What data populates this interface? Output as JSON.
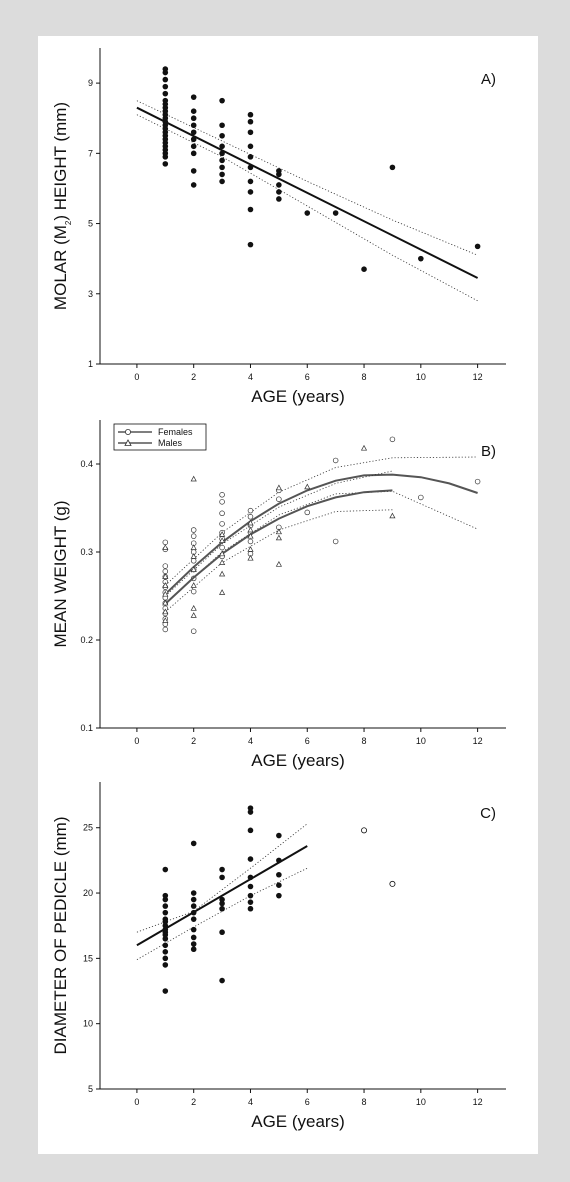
{
  "chart_data": [
    {
      "type": "scatter",
      "label": "A)",
      "xlabel": "AGE (years)",
      "ylabel": "MOLAR (M",
      "ylabel_sub": "2",
      "ylabel_tail": ") HEIGHT (mm)",
      "xlim": [
        -1.3,
        13
      ],
      "ylim": [
        1,
        10
      ],
      "xticks": [
        0,
        2,
        4,
        6,
        8,
        10,
        12
      ],
      "yticks": [
        1,
        3,
        5,
        7,
        9
      ],
      "grid": false,
      "points": [
        [
          1,
          6.7
        ],
        [
          1,
          6.9
        ],
        [
          1,
          7.0
        ],
        [
          1,
          7.1
        ],
        [
          1,
          7.2
        ],
        [
          1,
          7.3
        ],
        [
          1,
          7.4
        ],
        [
          1,
          7.5
        ],
        [
          1,
          7.6
        ],
        [
          1,
          7.7
        ],
        [
          1,
          7.8
        ],
        [
          1,
          7.9
        ],
        [
          1,
          8.0
        ],
        [
          1,
          8.1
        ],
        [
          1,
          8.2
        ],
        [
          1,
          8.3
        ],
        [
          1,
          8.4
        ],
        [
          1,
          8.5
        ],
        [
          1,
          8.7
        ],
        [
          1,
          8.9
        ],
        [
          1,
          9.1
        ],
        [
          1,
          9.3
        ],
        [
          1,
          9.4
        ],
        [
          2,
          6.1
        ],
        [
          2,
          6.5
        ],
        [
          2,
          7.0
        ],
        [
          2,
          7.2
        ],
        [
          2,
          7.4
        ],
        [
          2,
          7.6
        ],
        [
          2,
          7.8
        ],
        [
          2,
          8.0
        ],
        [
          2,
          8.2
        ],
        [
          2,
          8.6
        ],
        [
          3,
          6.2
        ],
        [
          3,
          6.4
        ],
        [
          3,
          6.6
        ],
        [
          3,
          6.8
        ],
        [
          3,
          7.0
        ],
        [
          3,
          7.2
        ],
        [
          3,
          7.5
        ],
        [
          3,
          7.8
        ],
        [
          3,
          8.5
        ],
        [
          4,
          4.4
        ],
        [
          4,
          5.4
        ],
        [
          4,
          5.9
        ],
        [
          4,
          6.2
        ],
        [
          4,
          6.6
        ],
        [
          4,
          6.9
        ],
        [
          4,
          7.2
        ],
        [
          4,
          7.6
        ],
        [
          4,
          7.9
        ],
        [
          4,
          8.1
        ],
        [
          5,
          5.7
        ],
        [
          5,
          5.9
        ],
        [
          5,
          6.1
        ],
        [
          5,
          6.4
        ],
        [
          5,
          6.5
        ],
        [
          6,
          5.3
        ],
        [
          7,
          5.3
        ],
        [
          8,
          3.7
        ],
        [
          9,
          6.6
        ],
        [
          10,
          4.0
        ],
        [
          12,
          4.35
        ]
      ],
      "fit": {
        "x0": 0,
        "y0": 8.3,
        "x1": 12,
        "y1": 3.45
      },
      "ci_upper": [
        [
          0,
          8.5
        ],
        [
          3,
          7.35
        ],
        [
          6,
          6.2
        ],
        [
          9,
          5.1
        ],
        [
          12,
          4.1
        ]
      ],
      "ci_lower": [
        [
          0,
          8.1
        ],
        [
          3,
          6.9
        ],
        [
          6,
          5.5
        ],
        [
          9,
          4.1
        ],
        [
          12,
          2.8
        ]
      ]
    },
    {
      "type": "scatter",
      "label": "B)",
      "xlabel": "AGE (years)",
      "ylabel": "MEAN WEIGHT  (g)",
      "xlim": [
        -1.3,
        13
      ],
      "ylim": [
        0.1,
        0.45
      ],
      "xticks": [
        0,
        2,
        4,
        6,
        8,
        10,
        12
      ],
      "yticks": [
        0.1,
        0.2,
        0.3,
        0.4
      ],
      "grid": false,
      "legend_position": "top-left",
      "series": [
        {
          "name": "Females",
          "marker": "circle",
          "points": [
            [
              1,
              0.212
            ],
            [
              1,
              0.218
            ],
            [
              1,
              0.224
            ],
            [
              1,
              0.23
            ],
            [
              1,
              0.236
            ],
            [
              1,
              0.242
            ],
            [
              1,
              0.248
            ],
            [
              1,
              0.254
            ],
            [
              1,
              0.26
            ],
            [
              1,
              0.266
            ],
            [
              1,
              0.272
            ],
            [
              1,
              0.278
            ],
            [
              1,
              0.284
            ],
            [
              1,
              0.303
            ],
            [
              1,
              0.311
            ],
            [
              2,
              0.21
            ],
            [
              2,
              0.255
            ],
            [
              2,
              0.27
            ],
            [
              2,
              0.28
            ],
            [
              2,
              0.29
            ],
            [
              2,
              0.3
            ],
            [
              2,
              0.31
            ],
            [
              2,
              0.318
            ],
            [
              2,
              0.325
            ],
            [
              3,
              0.295
            ],
            [
              3,
              0.305
            ],
            [
              3,
              0.315
            ],
            [
              3,
              0.322
            ],
            [
              3,
              0.332
            ],
            [
              3,
              0.344
            ],
            [
              3,
              0.357
            ],
            [
              3,
              0.365
            ],
            [
              4,
              0.298
            ],
            [
              4,
              0.312
            ],
            [
              4,
              0.322
            ],
            [
              4,
              0.33
            ],
            [
              4,
              0.34
            ],
            [
              4,
              0.347
            ],
            [
              5,
              0.328
            ],
            [
              5,
              0.36
            ],
            [
              5,
              0.37
            ],
            [
              6,
              0.345
            ],
            [
              7,
              0.312
            ],
            [
              7,
              0.404
            ],
            [
              9,
              0.428
            ],
            [
              10,
              0.362
            ],
            [
              12,
              0.38
            ]
          ],
          "fit": [
            [
              1,
              0.252
            ],
            [
              2,
              0.283
            ],
            [
              3,
              0.311
            ],
            [
              4,
              0.335
            ],
            [
              5,
              0.355
            ],
            [
              6,
              0.37
            ],
            [
              7,
              0.381
            ],
            [
              8,
              0.387
            ],
            [
              9,
              0.388
            ],
            [
              10,
              0.385
            ],
            [
              11,
              0.378
            ],
            [
              12,
              0.367
            ]
          ],
          "ci_upper": [
            [
              1,
              0.262
            ],
            [
              3,
              0.322
            ],
            [
              5,
              0.368
            ],
            [
              7,
              0.396
            ],
            [
              9,
              0.407
            ],
            [
              12,
              0.408
            ]
          ],
          "ci_lower": [
            [
              1,
              0.242
            ],
            [
              3,
              0.3
            ],
            [
              5,
              0.342
            ],
            [
              7,
              0.366
            ],
            [
              9,
              0.369
            ],
            [
              12,
              0.326
            ]
          ]
        },
        {
          "name": "Males",
          "marker": "triangle",
          "points": [
            [
              1,
              0.222
            ],
            [
              1,
              0.232
            ],
            [
              1,
              0.242
            ],
            [
              1,
              0.252
            ],
            [
              1,
              0.262
            ],
            [
              1,
              0.272
            ],
            [
              1,
              0.305
            ],
            [
              2,
              0.228
            ],
            [
              2,
              0.236
            ],
            [
              2,
              0.262
            ],
            [
              2,
              0.28
            ],
            [
              2,
              0.295
            ],
            [
              2,
              0.305
            ],
            [
              2,
              0.383
            ],
            [
              3,
              0.254
            ],
            [
              3,
              0.275
            ],
            [
              3,
              0.288
            ],
            [
              3,
              0.298
            ],
            [
              3,
              0.313
            ],
            [
              3,
              0.32
            ],
            [
              4,
              0.293
            ],
            [
              4,
              0.303
            ],
            [
              4,
              0.318
            ],
            [
              4,
              0.325
            ],
            [
              4,
              0.333
            ],
            [
              5,
              0.286
            ],
            [
              5,
              0.316
            ],
            [
              5,
              0.323
            ],
            [
              5,
              0.373
            ],
            [
              6,
              0.374
            ],
            [
              8,
              0.418
            ],
            [
              9,
              0.341
            ]
          ],
          "fit": [
            [
              1,
              0.241
            ],
            [
              2,
              0.271
            ],
            [
              3,
              0.298
            ],
            [
              4,
              0.32
            ],
            [
              5,
              0.338
            ],
            [
              6,
              0.352
            ],
            [
              7,
              0.362
            ],
            [
              8,
              0.368
            ],
            [
              9,
              0.37
            ]
          ],
          "ci_upper": [
            [
              1,
              0.25
            ],
            [
              3,
              0.309
            ],
            [
              5,
              0.351
            ],
            [
              7,
              0.378
            ],
            [
              9,
              0.392
            ]
          ],
          "ci_lower": [
            [
              1,
              0.232
            ],
            [
              3,
              0.288
            ],
            [
              5,
              0.325
            ],
            [
              7,
              0.346
            ],
            [
              9,
              0.348
            ]
          ]
        }
      ]
    },
    {
      "type": "scatter",
      "label": "C)",
      "xlabel": "AGE (years)",
      "ylabel": "DIAMETER OF PEDICLE (mm)",
      "xlim": [
        -1.3,
        13
      ],
      "ylim": [
        5,
        28.5
      ],
      "xticks": [
        0,
        2,
        4,
        6,
        8,
        10,
        12
      ],
      "yticks": [
        5,
        10,
        15,
        20,
        25
      ],
      "grid": false,
      "points": [
        [
          1,
          12.5
        ],
        [
          1,
          14.5
        ],
        [
          1,
          15.0
        ],
        [
          1,
          15.5
        ],
        [
          1,
          16.0
        ],
        [
          1,
          16.5
        ],
        [
          1,
          16.8
        ],
        [
          1,
          17.0
        ],
        [
          1,
          17.2
        ],
        [
          1,
          17.5
        ],
        [
          1,
          17.8
        ],
        [
          1,
          18.0
        ],
        [
          1,
          18.5
        ],
        [
          1,
          19.0
        ],
        [
          1,
          19.5
        ],
        [
          1,
          19.8
        ],
        [
          1,
          21.8
        ],
        [
          2,
          15.7
        ],
        [
          2,
          16.1
        ],
        [
          2,
          16.6
        ],
        [
          2,
          17.2
        ],
        [
          2,
          18.0
        ],
        [
          2,
          18.5
        ],
        [
          2,
          19.0
        ],
        [
          2,
          19.5
        ],
        [
          2,
          20.0
        ],
        [
          2,
          23.8
        ],
        [
          3,
          13.3
        ],
        [
          3,
          17.0
        ],
        [
          3,
          18.8
        ],
        [
          3,
          19.2
        ],
        [
          3,
          19.5
        ],
        [
          3,
          21.2
        ],
        [
          3,
          21.8
        ],
        [
          4,
          18.8
        ],
        [
          4,
          19.3
        ],
        [
          4,
          19.8
        ],
        [
          4,
          20.5
        ],
        [
          4,
          21.2
        ],
        [
          4,
          22.6
        ],
        [
          4,
          24.8
        ],
        [
          4,
          26.2
        ],
        [
          4,
          26.5
        ],
        [
          5,
          19.8
        ],
        [
          5,
          20.6
        ],
        [
          5,
          21.4
        ],
        [
          5,
          22.5
        ],
        [
          5,
          24.4
        ]
      ],
      "open_points": [
        [
          8,
          24.8
        ],
        [
          9,
          20.7
        ]
      ],
      "fit": {
        "x0": 0,
        "y0": 16.0,
        "x1": 6,
        "y1": 23.6
      },
      "ci_upper": [
        [
          0,
          17.0
        ],
        [
          2,
          18.6
        ],
        [
          4,
          21.9
        ],
        [
          6,
          25.3
        ]
      ],
      "ci_lower": [
        [
          0,
          14.9
        ],
        [
          2,
          17.4
        ],
        [
          4,
          19.8
        ],
        [
          6,
          21.9
        ]
      ]
    }
  ]
}
